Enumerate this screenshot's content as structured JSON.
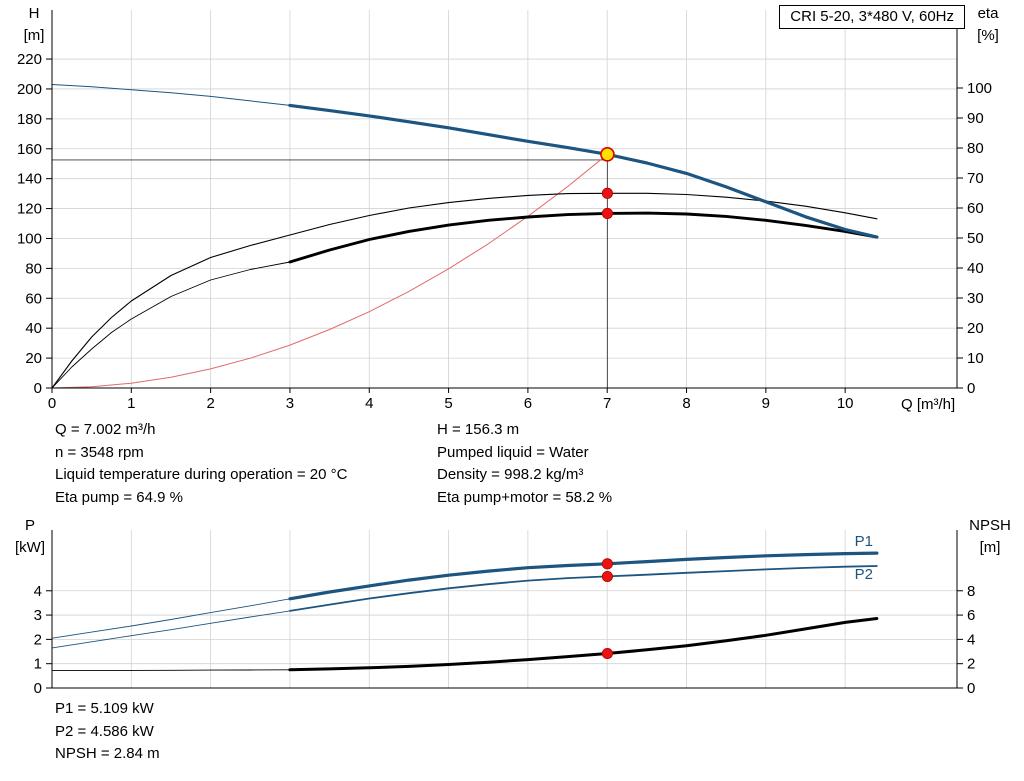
{
  "colors": {
    "blue": "#1d5580",
    "black": "#000000",
    "red_curve": "#e06a6a",
    "red_dot": "#ee1111",
    "yellow": "#ffdf00",
    "grid": "#d2d2d2",
    "crosshair": "#3a3a3a"
  },
  "info_top_left": [
    "Q = 7.002 m³/h",
    "n = 3548 rpm",
    "Liquid temperature during operation = 20 °C",
    "Eta pump = 64.9 %"
  ],
  "info_top_right": [
    "H = 156.3 m",
    "Pumped liquid = Water",
    "Density = 998.2 kg/m³",
    "Eta pump+motor = 58.2 %"
  ],
  "info_bottom": [
    "P1 = 5.109 kW",
    "P2 = 4.586 kW",
    "NPSH = 2.84 m"
  ],
  "chart_data": [
    {
      "id": "hq-eta",
      "type": "line",
      "title": "CRI 5-20, 3*480 V, 60Hz",
      "x_axis": {
        "label": "Q [m³/h]",
        "min": 0,
        "max": 11.41,
        "ticks": [
          0,
          1,
          2,
          3,
          4,
          5,
          6,
          7,
          8,
          9,
          10
        ],
        "grid": [
          1,
          2,
          3,
          4,
          5,
          6,
          7,
          8,
          9,
          10
        ],
        "show_labels": true
      },
      "y_left": {
        "name": "H",
        "unit": "[m]",
        "min": 0,
        "max": 252.8,
        "ticks": [
          0,
          20,
          40,
          60,
          80,
          100,
          120,
          140,
          160,
          180,
          200,
          220
        ],
        "grid": [
          20,
          40,
          60,
          80,
          100,
          120,
          140,
          160,
          180,
          200,
          220
        ]
      },
      "y_right": {
        "name": "eta",
        "unit": "[%]",
        "min": 0,
        "max": 126,
        "ticks": [
          0,
          10,
          20,
          30,
          40,
          50,
          60,
          70,
          80,
          90,
          100
        ]
      },
      "crosshair": {
        "q": 7.002,
        "v_top": 159.5,
        "h_value": 152.5,
        "h_to": 7.002
      },
      "series": [
        {
          "id": "system-curve",
          "axis": "left",
          "color": "#e06a6a",
          "w": 1,
          "points": [
            [
              0,
              0
            ],
            [
              0.5,
              0.8
            ],
            [
              1,
              3.2
            ],
            [
              1.5,
              7.2
            ],
            [
              2,
              12.8
            ],
            [
              2.5,
              19.9
            ],
            [
              3,
              28.7
            ],
            [
              3.5,
              39.1
            ],
            [
              4,
              51
            ],
            [
              4.5,
              64.6
            ],
            [
              5,
              79.7
            ],
            [
              5.5,
              96.4
            ],
            [
              6,
              114.8
            ],
            [
              6.5,
              134.7
            ],
            [
              7.002,
              156.3
            ]
          ]
        },
        {
          "id": "eta-pump",
          "axis": "right",
          "color": "#000000",
          "w": 1.1,
          "points": [
            [
              0,
              0
            ],
            [
              0.25,
              9
            ],
            [
              0.5,
              17
            ],
            [
              0.75,
              23.5
            ],
            [
              1,
              29
            ],
            [
              1.5,
              37.5
            ],
            [
              2,
              43.5
            ],
            [
              2.5,
              47.5
            ],
            [
              3,
              51
            ],
            [
              3.5,
              54.5
            ],
            [
              4,
              57.5
            ],
            [
              4.5,
              60
            ],
            [
              5,
              61.8
            ],
            [
              5.5,
              63.2
            ],
            [
              6,
              64.2
            ],
            [
              6.5,
              64.8
            ],
            [
              7,
              64.9
            ],
            [
              7.5,
              64.9
            ],
            [
              8,
              64.5
            ],
            [
              8.5,
              63.6
            ],
            [
              9,
              62.3
            ],
            [
              9.5,
              60.6
            ],
            [
              10,
              58.4
            ],
            [
              10.4,
              56.4
            ]
          ]
        },
        {
          "id": "eta-pump-motor",
          "axis": "right",
          "color": "#000000",
          "split": 3,
          "w_thin": 0.9,
          "w_thick": 2.9,
          "points": [
            [
              0,
              0
            ],
            [
              0.25,
              7
            ],
            [
              0.5,
              13
            ],
            [
              0.75,
              18.5
            ],
            [
              1,
              23
            ],
            [
              1.5,
              30.5
            ],
            [
              2,
              36
            ],
            [
              2.5,
              39.5
            ],
            [
              3,
              42
            ],
            [
              3.5,
              46
            ],
            [
              4,
              49.5
            ],
            [
              4.5,
              52.2
            ],
            [
              5,
              54.3
            ],
            [
              5.5,
              55.9
            ],
            [
              6,
              57
            ],
            [
              6.5,
              57.8
            ],
            [
              7,
              58.2
            ],
            [
              7.5,
              58.3
            ],
            [
              8,
              58
            ],
            [
              8.5,
              57.2
            ],
            [
              9,
              55.9
            ],
            [
              9.5,
              54.2
            ],
            [
              10,
              52.2
            ],
            [
              10.4,
              50.3
            ]
          ]
        },
        {
          "id": "head-curve",
          "axis": "left",
          "color": "#1d5580",
          "split": 3,
          "w_thin": 1,
          "w_thick": 3.2,
          "points": [
            [
              0,
              203
            ],
            [
              0.5,
              201.5
            ],
            [
              1,
              199.5
            ],
            [
              1.5,
              197.5
            ],
            [
              2,
              195
            ],
            [
              2.5,
              192
            ],
            [
              3,
              189
            ],
            [
              3.5,
              185.5
            ],
            [
              4,
              182
            ],
            [
              4.5,
              178
            ],
            [
              5,
              174
            ],
            [
              5.5,
              169.5
            ],
            [
              6,
              165
            ],
            [
              6.5,
              160.8
            ],
            [
              7,
              156.3
            ],
            [
              7.5,
              150.5
            ],
            [
              8,
              143.5
            ],
            [
              8.5,
              134.5
            ],
            [
              9,
              124.5
            ],
            [
              9.5,
              114.5
            ],
            [
              10,
              106
            ],
            [
              10.4,
              101
            ]
          ]
        }
      ],
      "markers": [
        {
          "kind": "dot",
          "q": 7.002,
          "value": 64.9,
          "axis": "right"
        },
        {
          "kind": "dot",
          "q": 7.002,
          "value": 58.2,
          "axis": "right"
        },
        {
          "kind": "duty",
          "q": 7.002,
          "value": 156.3,
          "axis": "left"
        }
      ]
    },
    {
      "id": "power-npsh",
      "type": "line",
      "title": "",
      "x_axis": {
        "label": "",
        "min": 0,
        "max": 11.41,
        "ticks": [],
        "grid": [
          1,
          2,
          3,
          4,
          5,
          6,
          7,
          8,
          9,
          10
        ],
        "show_labels": false
      },
      "y_left": {
        "name": "P",
        "unit": "[kW]",
        "min": 0,
        "max": 6.5,
        "ticks": [
          0,
          1,
          2,
          3,
          4
        ],
        "grid": [
          1,
          2,
          3,
          4
        ]
      },
      "y_right": {
        "name": "NPSH",
        "unit": "[m]",
        "min": 0,
        "max": 13,
        "ticks": [
          0,
          2,
          4,
          6,
          8
        ]
      },
      "series": [
        {
          "id": "npsh-curve",
          "axis": "right",
          "color": "#000000",
          "split": 3,
          "w_thin": 0.9,
          "w_thick": 3,
          "points": [
            [
              0,
              1.45
            ],
            [
              0.5,
              1.45
            ],
            [
              1,
              1.45
            ],
            [
              1.5,
              1.46
            ],
            [
              2,
              1.47
            ],
            [
              2.5,
              1.48
            ],
            [
              3,
              1.5
            ],
            [
              3.5,
              1.57
            ],
            [
              4,
              1.66
            ],
            [
              4.5,
              1.78
            ],
            [
              5,
              1.93
            ],
            [
              5.5,
              2.12
            ],
            [
              6,
              2.34
            ],
            [
              6.5,
              2.58
            ],
            [
              7,
              2.84
            ],
            [
              7.5,
              3.14
            ],
            [
              8,
              3.48
            ],
            [
              8.5,
              3.88
            ],
            [
              9,
              4.34
            ],
            [
              9.5,
              4.86
            ],
            [
              10,
              5.4
            ],
            [
              10.4,
              5.72
            ]
          ]
        },
        {
          "id": "p2-curve",
          "axis": "left",
          "color": "#1d5580",
          "split": 3,
          "w_thin": 0.9,
          "w_thick": 1.8,
          "points": [
            [
              0,
              1.65
            ],
            [
              0.5,
              1.9
            ],
            [
              1,
              2.15
            ],
            [
              1.5,
              2.4
            ],
            [
              2,
              2.66
            ],
            [
              2.5,
              2.92
            ],
            [
              3,
              3.17
            ],
            [
              3.5,
              3.43
            ],
            [
              4,
              3.68
            ],
            [
              4.5,
              3.9
            ],
            [
              5,
              4.1
            ],
            [
              5.5,
              4.27
            ],
            [
              6,
              4.42
            ],
            [
              6.5,
              4.52
            ],
            [
              7,
              4.59
            ],
            [
              7.5,
              4.66
            ],
            [
              8,
              4.74
            ],
            [
              8.5,
              4.81
            ],
            [
              9,
              4.88
            ],
            [
              9.5,
              4.94
            ],
            [
              10,
              4.99
            ],
            [
              10.4,
              5.02
            ]
          ]
        },
        {
          "id": "p1-curve",
          "axis": "left",
          "color": "#1d5580",
          "split": 3,
          "w_thin": 0.9,
          "w_thick": 3.2,
          "points": [
            [
              0,
              2.05
            ],
            [
              0.5,
              2.3
            ],
            [
              1,
              2.55
            ],
            [
              1.5,
              2.82
            ],
            [
              2,
              3.1
            ],
            [
              2.5,
              3.38
            ],
            [
              3,
              3.67
            ],
            [
              3.5,
              3.95
            ],
            [
              4,
              4.2
            ],
            [
              4.5,
              4.44
            ],
            [
              5,
              4.64
            ],
            [
              5.5,
              4.81
            ],
            [
              6,
              4.95
            ],
            [
              6.5,
              5.04
            ],
            [
              7,
              5.11
            ],
            [
              7.5,
              5.2
            ],
            [
              8,
              5.29
            ],
            [
              8.5,
              5.37
            ],
            [
              9,
              5.44
            ],
            [
              9.5,
              5.49
            ],
            [
              10,
              5.53
            ],
            [
              10.4,
              5.55
            ]
          ]
        }
      ],
      "labels": [
        {
          "text": "P1",
          "q": 10.12,
          "value": 5.85,
          "axis": "left",
          "color": "#1d5580"
        },
        {
          "text": "P2",
          "q": 10.12,
          "value": 4.48,
          "axis": "left",
          "color": "#1d5580"
        }
      ],
      "markers": [
        {
          "kind": "dot",
          "q": 7.002,
          "value": 5.109,
          "axis": "left"
        },
        {
          "kind": "dot",
          "q": 7.002,
          "value": 4.586,
          "axis": "left"
        },
        {
          "kind": "dot",
          "q": 7.002,
          "value": 2.84,
          "axis": "right"
        }
      ]
    }
  ]
}
